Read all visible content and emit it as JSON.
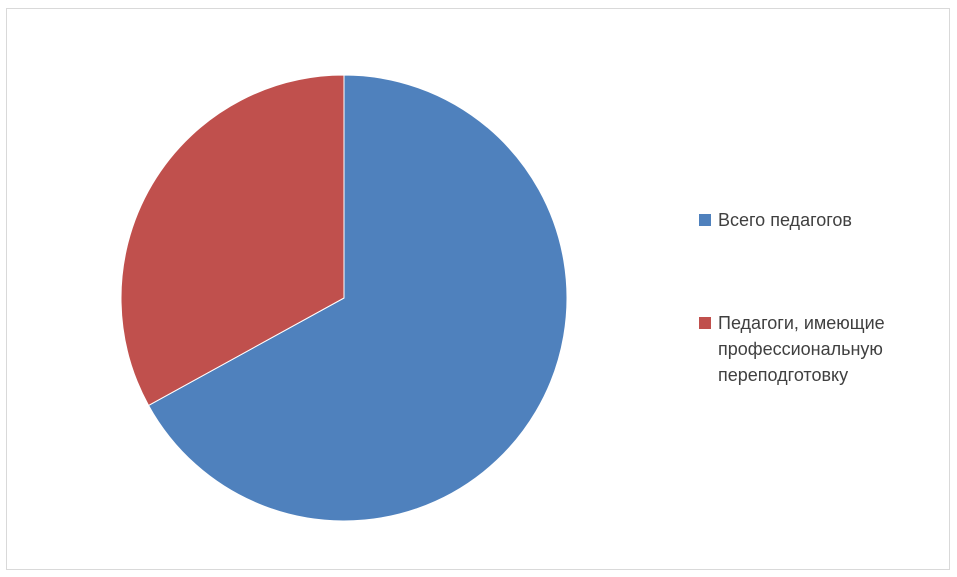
{
  "chart_data": {
    "type": "pie",
    "title": "",
    "categories": [
      "Всего педагогов",
      "Педагоги, имеющие профессиональную переподготовку"
    ],
    "values": [
      67,
      33
    ],
    "colors": [
      "#4F81BD",
      "#C0504D"
    ],
    "legend_position": "right",
    "start_angle_deg": 0,
    "direction": "clockwise"
  },
  "legend": {
    "items": [
      {
        "label": "Всего педагогов",
        "color": "#4F81BD"
      },
      {
        "label": "Педагоги, имеющие\nпрофессиональную\nпереподготовку",
        "color": "#C0504D"
      }
    ]
  }
}
